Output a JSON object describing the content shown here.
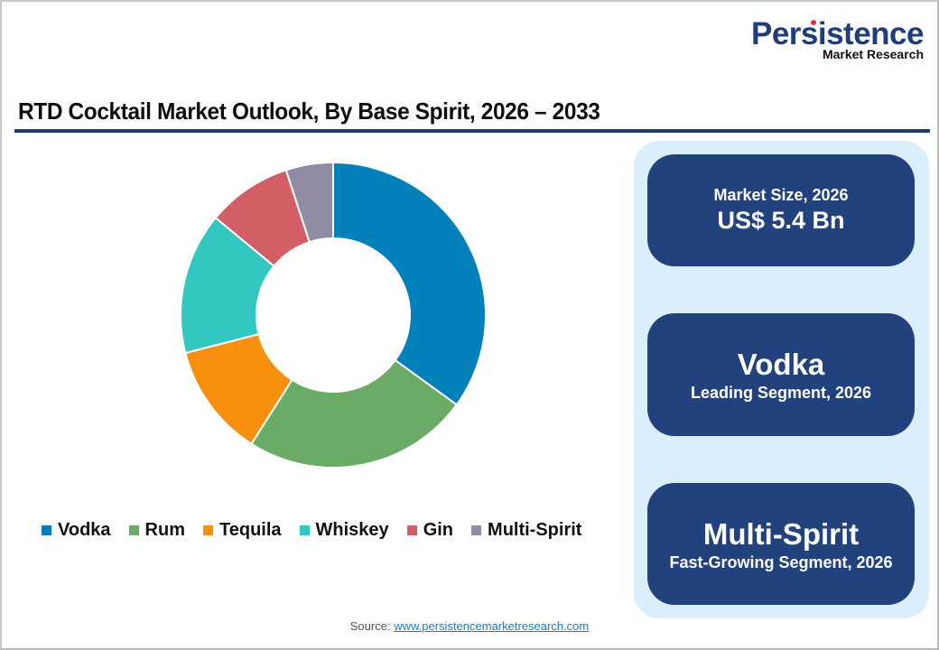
{
  "logo": {
    "name": "Persistence",
    "subtitle": "Market Research"
  },
  "title": "RTD Cocktail Market Outlook, By Base Spirit, 2026 – 2033",
  "legend": [
    {
      "label": "Vodka",
      "color": "#0180ba"
    },
    {
      "label": "Rum",
      "color": "#6aac67"
    },
    {
      "label": "Tequila",
      "color": "#f7900f"
    },
    {
      "label": "Whiskey",
      "color": "#33c7c2"
    },
    {
      "label": "Gin",
      "color": "#d25e66"
    },
    {
      "label": "Multi-Spirit",
      "color": "#918ca3"
    }
  ],
  "cards": {
    "market_size": {
      "label": "Market Size, 2026",
      "value": "US$ 5.4 Bn"
    },
    "leading": {
      "value": "Vodka",
      "label": "Leading Segment, 2026"
    },
    "fastest": {
      "value": "Multi-Spirit",
      "label": "Fast-Growing Segment, 2026"
    }
  },
  "source": {
    "prefix": "Source:",
    "link_text": "www.persistencemarketresearch.com"
  },
  "chart_data": {
    "type": "pie",
    "subtype": "donut",
    "title": "RTD Cocktail Market Outlook, By Base Spirit, 2026 – 2033",
    "categories": [
      "Vodka",
      "Rum",
      "Tequila",
      "Whiskey",
      "Gin",
      "Multi-Spirit"
    ],
    "values": [
      35,
      24,
      12,
      15,
      9,
      5
    ],
    "unit": "% share (estimated from slice angles)",
    "colors": [
      "#0180ba",
      "#6aac67",
      "#f7900f",
      "#33c7c2",
      "#d25e66",
      "#918ca3"
    ],
    "start_angle": "12 o'clock, clockwise",
    "legend_position": "bottom"
  }
}
